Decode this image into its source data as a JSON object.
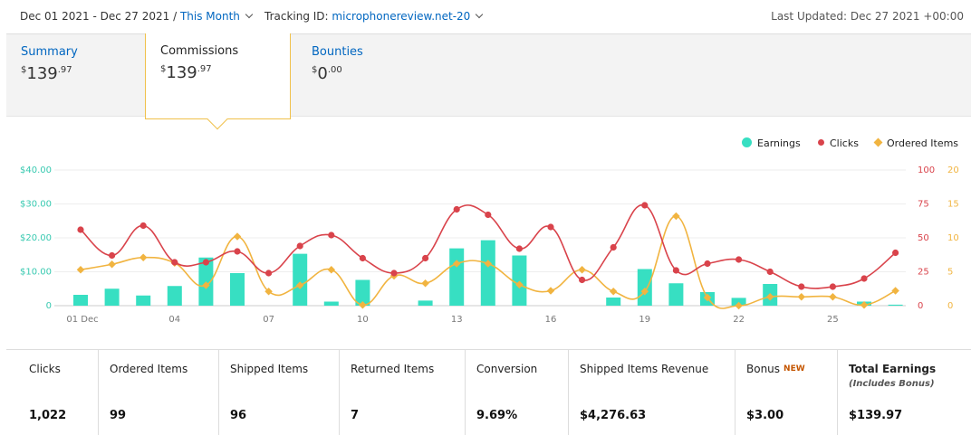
{
  "topbar": {
    "date_range": "Dec 01 2021 - Dec 27 2021 /",
    "period": "This Month",
    "tracking_label": "Tracking ID:",
    "tracking_id": "microphonereview.net-20",
    "last_updated": "Last Updated: Dec 27 2021 +00:00"
  },
  "tabs": [
    {
      "label": "Summary",
      "currency": "$",
      "whole": "139",
      "cents": ".97"
    },
    {
      "label": "Commissions",
      "currency": "$",
      "whole": "139",
      "cents": ".97"
    },
    {
      "label": "Bounties",
      "currency": "$",
      "whole": "0",
      "cents": ".00"
    }
  ],
  "legend": {
    "earnings": "Earnings",
    "clicks": "Clicks",
    "ordered": "Ordered Items"
  },
  "colors": {
    "earnings": "#37dfc2",
    "clicks": "#d9434b",
    "ordered": "#f1b440",
    "link": "#0066c0"
  },
  "chart_data": {
    "type": "bar+line",
    "x": [
      "01 Dec",
      "02",
      "03",
      "04",
      "05",
      "06",
      "07",
      "08",
      "09",
      "10",
      "11",
      "12",
      "13",
      "14",
      "15",
      "16",
      "17",
      "18",
      "19",
      "20",
      "21",
      "22",
      "23",
      "24",
      "25",
      "26",
      "27"
    ],
    "x_tick_labels": [
      "01 Dec",
      "04",
      "07",
      "10",
      "13",
      "16",
      "19",
      "22",
      "25"
    ],
    "y_left_ticks": [
      "0",
      "$10.00",
      "$20.00",
      "$30.00",
      "$40.00"
    ],
    "y_left_range": [
      0,
      40
    ],
    "y_right1_ticks": [
      "0",
      "25",
      "50",
      "75",
      "100"
    ],
    "y_right1_range": [
      0,
      100
    ],
    "y_right2_ticks": [
      "0",
      "5",
      "10",
      "15",
      "20"
    ],
    "y_right2_range": [
      0,
      20
    ],
    "series": [
      {
        "name": "Earnings",
        "axis": "left",
        "kind": "bar",
        "values": [
          3.2,
          5.0,
          3.0,
          5.8,
          14.2,
          9.6,
          0,
          15.3,
          1.2,
          7.6,
          0,
          1.5,
          16.9,
          19.3,
          14.8,
          0,
          0,
          2.4,
          10.8,
          6.6,
          4.0,
          2.3,
          6.4,
          0,
          0,
          1.2,
          0.3
        ]
      },
      {
        "name": "Clicks",
        "axis": "right1",
        "kind": "line",
        "values": [
          56,
          37,
          59,
          32,
          32,
          40,
          24,
          44,
          52,
          35,
          24,
          35,
          71,
          67,
          42,
          58,
          19,
          43,
          74,
          26,
          31,
          34,
          25,
          14,
          14,
          20,
          39
        ]
      },
      {
        "name": "Ordered Items",
        "axis": "right2",
        "kind": "line",
        "values": [
          5.3,
          6.1,
          7.1,
          6.3,
          3.0,
          10.2,
          2.1,
          3.0,
          5.3,
          0.1,
          4.4,
          3.3,
          6.2,
          6.2,
          3.1,
          2.2,
          5.3,
          2.1,
          2.1,
          13.2,
          1.2,
          0,
          1.3,
          1.3,
          1.3,
          0.1,
          2.2
        ]
      }
    ]
  },
  "stats": [
    {
      "label": "Clicks",
      "value": "1,022"
    },
    {
      "label": "Ordered Items",
      "value": "99"
    },
    {
      "label": "Shipped Items",
      "value": "96"
    },
    {
      "label": "Returned Items",
      "value": "7"
    },
    {
      "label": "Conversion",
      "value": "9.69%"
    },
    {
      "label": "Shipped Items Revenue",
      "value": "$4,276.63"
    },
    {
      "label": "Bonus",
      "badge": "NEW",
      "value": "$3.00"
    },
    {
      "label": "Total Earnings",
      "sublabel": "(Includes Bonus)",
      "value": "$139.97"
    }
  ]
}
